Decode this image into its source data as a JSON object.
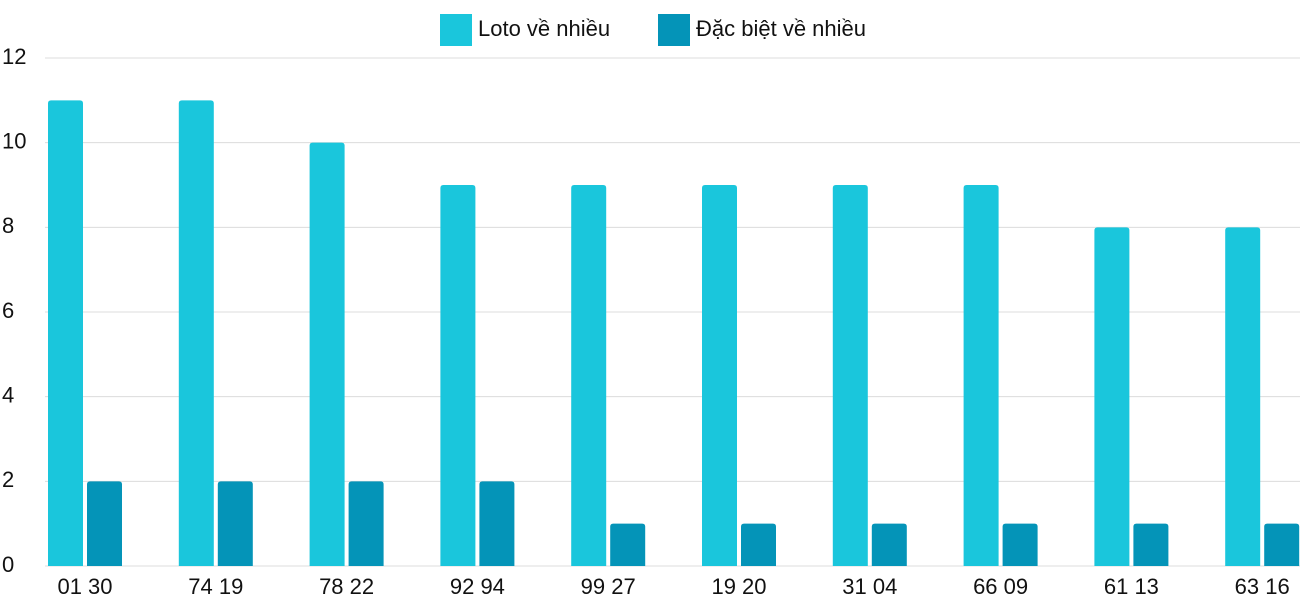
{
  "chart_data": {
    "type": "bar",
    "categories": [
      "01 30",
      "74 19",
      "78 22",
      "92 94",
      "99 27",
      "19 20",
      "31 04",
      "66 09",
      "61 13",
      "63 16"
    ],
    "series": [
      {
        "name": "Loto về nhiều",
        "color": "#1ac6dc",
        "values": [
          11,
          11,
          10,
          9,
          9,
          9,
          9,
          9,
          8,
          8
        ]
      },
      {
        "name": "Đặc biệt về nhiều",
        "color": "#0494b8",
        "values": [
          2,
          2,
          2,
          2,
          1,
          1,
          1,
          1,
          1,
          1
        ]
      }
    ],
    "ylim": [
      0,
      12
    ],
    "yticks": [
      0,
      2,
      4,
      6,
      8,
      10,
      12
    ],
    "grid": true,
    "legend": "top"
  }
}
